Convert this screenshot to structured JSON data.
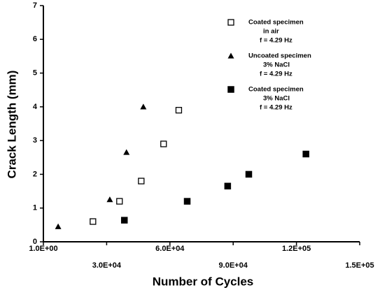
{
  "chart_data": {
    "type": "scatter",
    "x_label": "Number of Cycles",
    "y_label": "Crack Length (mm)",
    "xlim": [
      0,
      150000
    ],
    "ylim": [
      0,
      7
    ],
    "xticks": [
      {
        "value": 0,
        "label": "1.0E+00"
      },
      {
        "value": 30000,
        "label": "3.0E+04"
      },
      {
        "value": 60000,
        "label": "6.0E+04"
      },
      {
        "value": 90000,
        "label": "9.0E+04"
      },
      {
        "value": 120000,
        "label": "1.2E+05"
      },
      {
        "value": 150000,
        "label": "1.5E+05"
      }
    ],
    "yticks": [
      0,
      1,
      2,
      3,
      4,
      5,
      6,
      7
    ],
    "series": [
      {
        "name": "Coated specimen",
        "condition": "in air",
        "frequency": "f = 4.29 Hz",
        "marker": "open-square",
        "color": "#000000",
        "x": [
          23500,
          36100,
          46400,
          57000,
          64200
        ],
        "values": [
          0.6,
          1.2,
          1.8,
          2.9,
          3.9
        ]
      },
      {
        "name": "Uncoated specimen",
        "condition": "3% NaCl",
        "frequency": "f = 4.29 Hz",
        "marker": "triangle",
        "color": "#000000",
        "x": [
          7000,
          31500,
          39400,
          47400
        ],
        "values": [
          0.45,
          1.25,
          2.65,
          4.0
        ]
      },
      {
        "name": "Coated specimen",
        "condition": "3% NaCl",
        "frequency": "f = 4.29 Hz",
        "marker": "filled-square",
        "color": "#000000",
        "x": [
          38400,
          68200,
          87400,
          97400,
          124500
        ],
        "values": [
          0.64,
          1.2,
          1.65,
          2.0,
          2.6
        ]
      }
    ]
  }
}
